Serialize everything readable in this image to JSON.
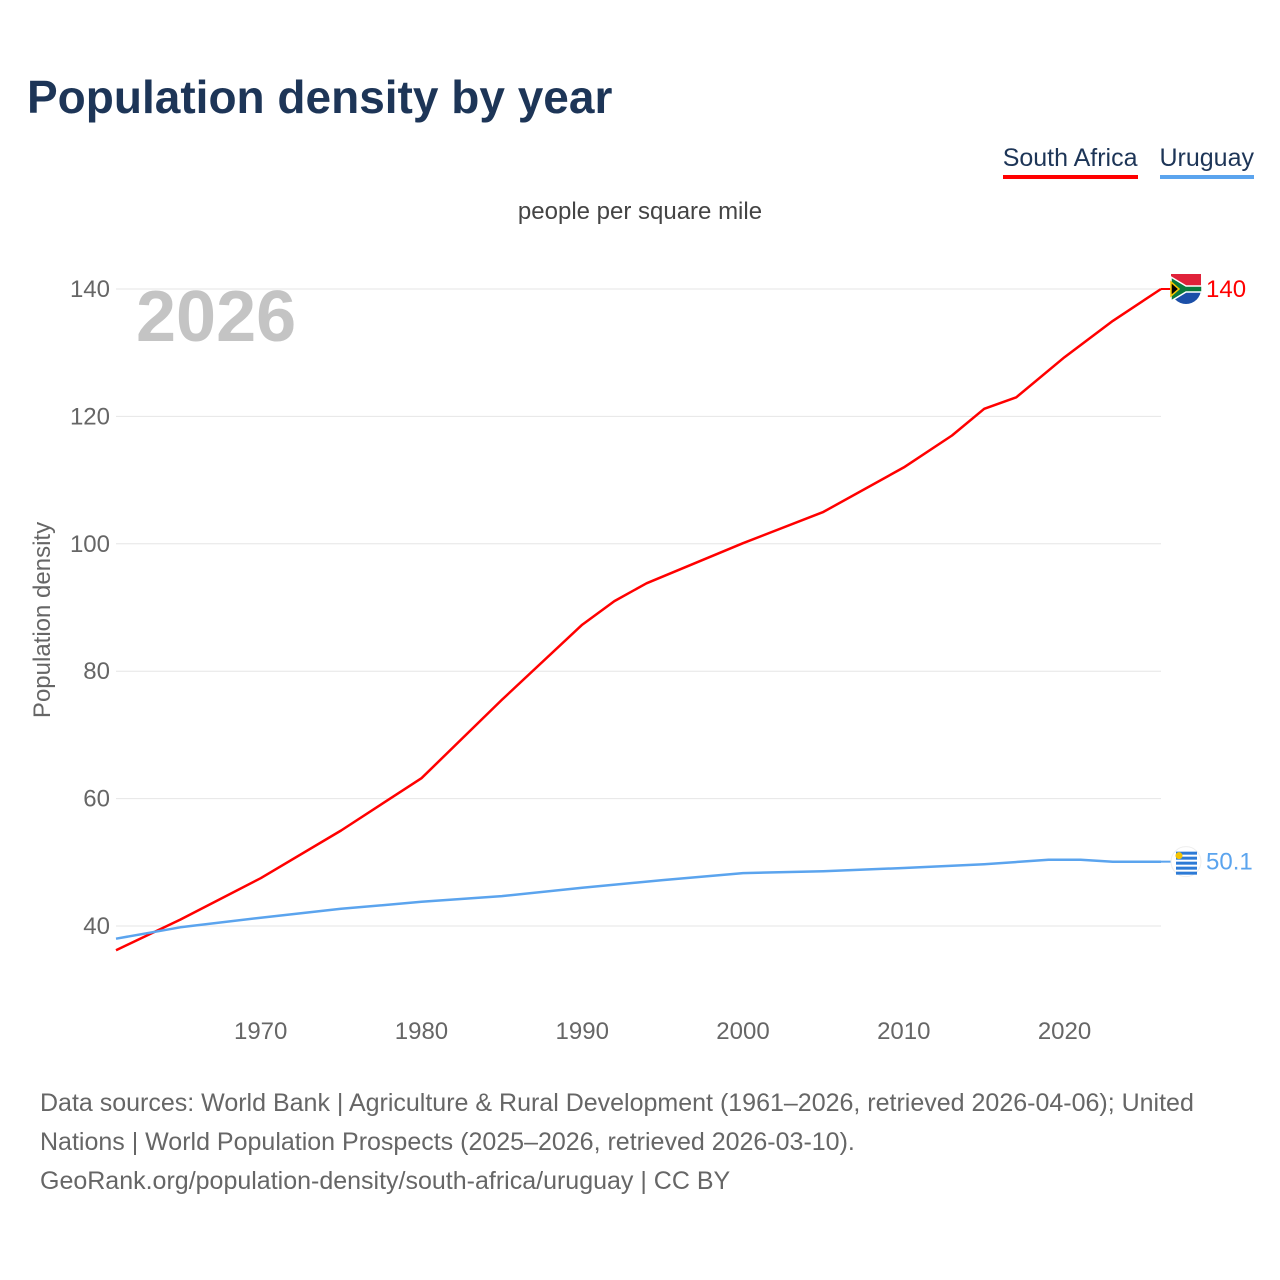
{
  "title": "Population density by year",
  "legend": [
    {
      "name": "South Africa",
      "color": "#ff0000"
    },
    {
      "name": "Uruguay",
      "color": "#5ba4ee"
    }
  ],
  "subtitle": "people per square mile",
  "year_label": "2026",
  "source": [
    "Data sources: World Bank | Agriculture & Rural Development (1961–2026, retrieved 2026-04-06); United Nations | World Population Prospects (2025–2026, retrieved 2026-03-10).",
    "GeoRank.org/population-density/south-africa/uruguay | CC BY"
  ],
  "chart_data": {
    "type": "line",
    "ylabel": "Population density",
    "xlim": [
      1961,
      2026
    ],
    "ylim": [
      40,
      140
    ],
    "yticks": [
      40,
      60,
      80,
      100,
      120,
      140
    ],
    "xticks": [
      1970,
      1980,
      1990,
      2000,
      2010,
      2020
    ],
    "end_labels": [
      "140",
      "50.1"
    ],
    "series": [
      {
        "name": "South Africa",
        "color": "#ff0000",
        "x": [
          1961,
          1965,
          1970,
          1975,
          1980,
          1985,
          1990,
          1992,
          1994,
          2000,
          2005,
          2010,
          2013,
          2015,
          2017,
          2020,
          2023,
          2026
        ],
        "y": [
          36.2,
          41,
          47.5,
          55,
          63.2,
          75.5,
          87.3,
          91,
          93.8,
          100.1,
          105,
          112,
          117,
          121.2,
          123,
          129.3,
          135,
          140
        ]
      },
      {
        "name": "Uruguay",
        "color": "#5ba4ee",
        "x": [
          1961,
          1965,
          1970,
          1975,
          1980,
          1985,
          1990,
          1995,
          2000,
          2005,
          2010,
          2015,
          2019,
          2021,
          2023,
          2026
        ],
        "y": [
          38,
          39.8,
          41.3,
          42.7,
          43.8,
          44.7,
          46,
          47.2,
          48.3,
          48.6,
          49.1,
          49.7,
          50.4,
          50.4,
          50.1,
          50.1
        ]
      }
    ]
  }
}
